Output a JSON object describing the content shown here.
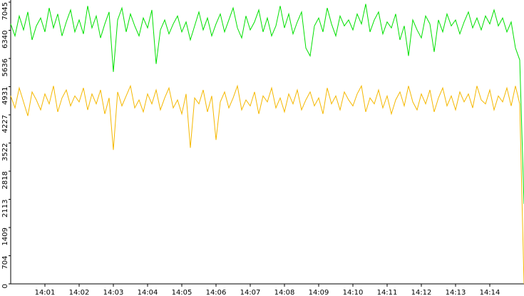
{
  "chart_data": {
    "type": "line",
    "categories": [
      null,
      null,
      null,
      null,
      null,
      null,
      null,
      null,
      "14:01",
      null,
      null,
      null,
      null,
      null,
      null,
      null,
      "14:02",
      null,
      null,
      null,
      null,
      null,
      null,
      null,
      "14:03",
      null,
      null,
      null,
      null,
      null,
      null,
      null,
      "14:04",
      null,
      null,
      null,
      null,
      null,
      null,
      null,
      "14:05",
      null,
      null,
      null,
      null,
      null,
      null,
      null,
      "14:06",
      null,
      null,
      null,
      null,
      null,
      null,
      null,
      "14:07",
      null,
      null,
      null,
      null,
      null,
      null,
      null,
      "14:08",
      null,
      null,
      null,
      null,
      null,
      null,
      null,
      "14:09",
      null,
      null,
      null,
      null,
      null,
      null,
      null,
      "14:10",
      null,
      null,
      null,
      null,
      null,
      null,
      null,
      "14:11",
      null,
      null,
      null,
      null,
      null,
      null,
      null,
      "14:12",
      null,
      null,
      null,
      null,
      null,
      null,
      null,
      "14:13",
      null,
      null,
      null,
      null,
      null,
      null,
      null,
      "14:14",
      null,
      null,
      null,
      null,
      null,
      null,
      null,
      null
    ],
    "series": [
      {
        "color": "#00e000",
        "values": [
          6500,
          6200,
          6700,
          6350,
          6800,
          6100,
          6450,
          6650,
          6300,
          6900,
          6400,
          6750,
          6200,
          6550,
          6850,
          6300,
          6600,
          6250,
          6950,
          6400,
          6700,
          6150,
          6500,
          6800,
          5300,
          6600,
          6900,
          6300,
          6750,
          6450,
          6200,
          6650,
          6400,
          6850,
          5500,
          6350,
          6600,
          6250,
          6500,
          6700,
          6300,
          6550,
          6100,
          6450,
          6800,
          6350,
          6650,
          6200,
          6500,
          6750,
          6300,
          6600,
          6900,
          6400,
          6150,
          6700,
          6350,
          6550,
          6850,
          6300,
          6650,
          6200,
          6450,
          6950,
          6400,
          6750,
          6250,
          6550,
          6800,
          5900,
          5700,
          6450,
          6650,
          6300,
          6900,
          6500,
          6200,
          6700,
          6450,
          6600,
          6350,
          6750,
          6500,
          7000,
          6300,
          6600,
          6800,
          6250,
          6550,
          6400,
          6750,
          6100,
          6450,
          5700,
          6600,
          6350,
          6150,
          6700,
          6500,
          5800,
          6600,
          6300,
          6750,
          6450,
          6600,
          6250,
          6550,
          6800,
          6400,
          6650,
          6350,
          6700,
          6500,
          6850,
          6450,
          6650,
          6300,
          6550,
          5900,
          5600,
          2000
        ]
      },
      {
        "color": "#f5b800",
        "values": [
          4700,
          4400,
          4900,
          4550,
          4200,
          4800,
          4600,
          4350,
          4750,
          4500,
          4950,
          4300,
          4650,
          4850,
          4450,
          4700,
          4550,
          4900,
          4350,
          4750,
          4500,
          4850,
          4250,
          4650,
          3350,
          4800,
          4450,
          4700,
          4950,
          4400,
          4600,
          4300,
          4750,
          4500,
          4850,
          4350,
          4650,
          4900,
          4400,
          4600,
          4250,
          4750,
          3400,
          4650,
          4500,
          4850,
          4300,
          4700,
          3600,
          4550,
          4800,
          4400,
          4650,
          4950,
          4350,
          4600,
          4450,
          4800,
          4250,
          4700,
          4550,
          4900,
          4400,
          4650,
          4300,
          4750,
          4500,
          4850,
          4350,
          4600,
          4800,
          4450,
          4650,
          4250,
          4900,
          4500,
          4700,
          4350,
          4800,
          4600,
          4450,
          4750,
          4950,
          4300,
          4650,
          4500,
          4850,
          4400,
          4700,
          4250,
          4600,
          4800,
          4450,
          4950,
          4550,
          4350,
          4750,
          4500,
          4850,
          4300,
          4650,
          4900,
          4450,
          4700,
          4350,
          4800,
          4550,
          4750,
          4400,
          4950,
          4600,
          4500,
          4850,
          4350,
          4700,
          4550,
          4900,
          4450,
          4950,
          4500,
          0
        ]
      }
    ],
    "ylim": [
      0,
      7045
    ],
    "yticks": [
      0,
      704,
      1409,
      2113,
      2818,
      3522,
      4227,
      4931,
      5636,
      6340,
      7045
    ]
  }
}
